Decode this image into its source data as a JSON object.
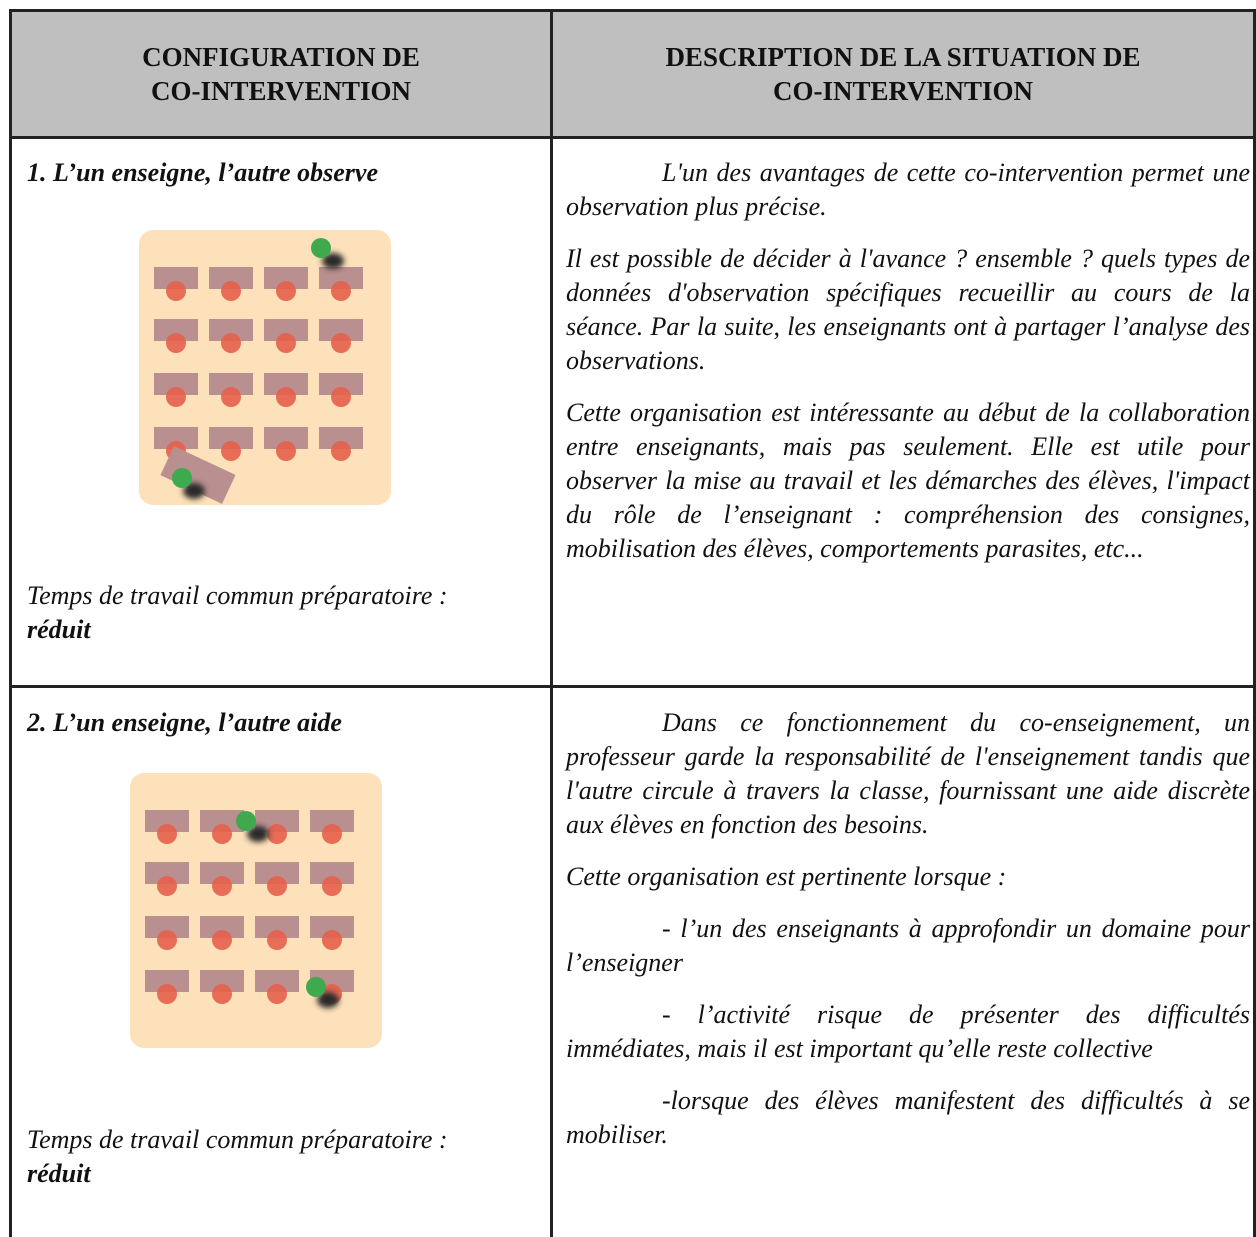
{
  "table": {
    "header": [
      [
        "CONFIGURATION DE",
        "CO-INTERVENTION"
      ],
      [
        "DESCRIPTION DE LA SITUATION DE",
        "CO-INTERVENTION"
      ]
    ],
    "rows": [
      {
        "title": "1. L’un enseigne, l’autre observe",
        "prep_label": "Temps de travail commun préparatoire :",
        "prep_value": "réduit",
        "description": [
          "L'un des avantages de cette co-intervention permet une observation plus précise.",
          "Il est possible de décider à l'avance ? ensemble ? quels types de données d'observation spécifiques recueillir au cours de la séance. Par la suite, les enseignants ont à partager l’analyse des observations.",
          "Cette organisation est intéressante au début de la collaboration entre enseignants, mais pas seulement. Elle est utile pour observer la mise au travail et les démarches des élèves, l'impact du rôle de l’enseignant : compréhension des consignes, mobilisation des élèves, comportements parasites, etc..."
        ]
      },
      {
        "title": "2. L’un enseigne, l’autre aide",
        "prep_label": "Temps de travail commun préparatoire :",
        "prep_value": "réduit",
        "description": [
          "Dans ce fonctionnement du co-enseignement, un professeur garde la responsabilité de l'enseignement tandis que l'autre circule à travers la classe, fournissant une aide discrète aux élèves en fonction des besoins.",
          "Cette organisation est pertinente lorsque :",
          "- l’un des enseignants à approfondir un domaine pour l’enseigner",
          "- l’activité risque de présenter des difficultés immédiates, mais il est important qu’elle reste collective",
          "-lorsque des élèves manifestent des difficultés à se mobiliser."
        ]
      }
    ]
  }
}
